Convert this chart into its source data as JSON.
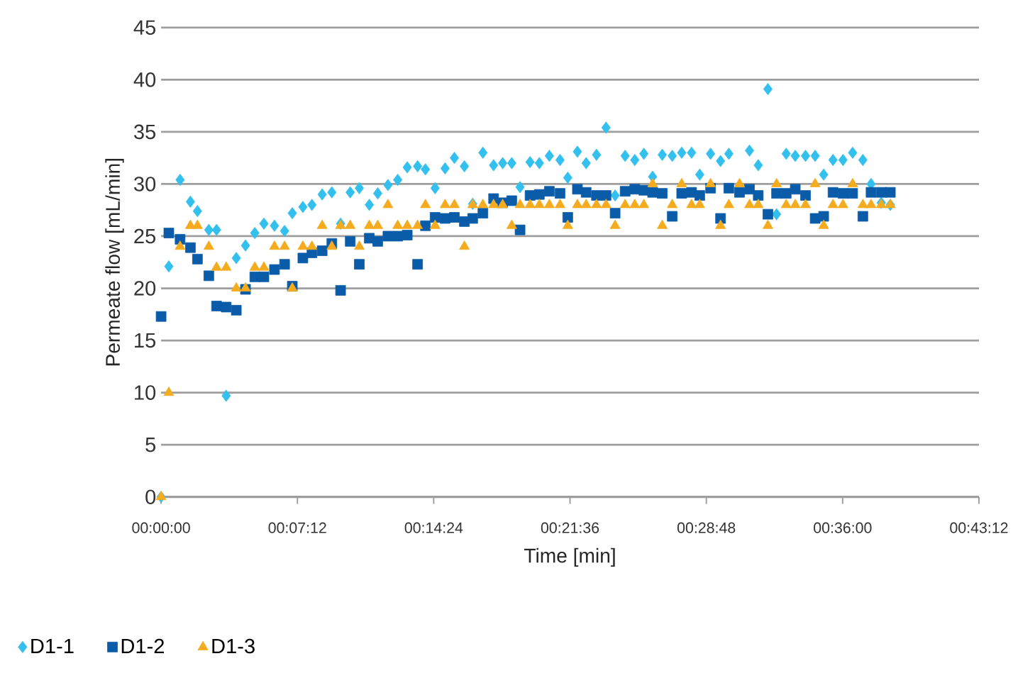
{
  "chart_data": {
    "type": "scatter",
    "xlabel": "Time [min]",
    "ylabel": "Permeate flow [mL/min]",
    "x": [
      0,
      0.0068,
      0.0167,
      0.0258,
      0.032,
      0.042,
      0.0488,
      0.0573,
      0.0662,
      0.0743,
      0.0825,
      0.0905,
      0.0998,
      0.1087,
      0.1155,
      0.1248,
      0.1328,
      0.1418,
      0.1503,
      0.158,
      0.1665,
      0.1745,
      0.1833,
      0.1907,
      0.1997,
      0.2083,
      0.2167,
      0.2258,
      0.2327,
      0.2412,
      0.25,
      0.2582,
      0.267,
      0.2743,
      0.2833,
      0.2927,
      0.3007,
      0.3087,
      0.316,
      0.3248,
      0.333,
      0.3418,
      0.3512,
      0.358,
      0.3665,
      0.3742,
      0.3833,
      0.3917,
      0.3997,
      0.4085,
      0.417,
      0.425,
      0.4327,
      0.4412,
      0.45,
      0.4583,
      0.467,
      0.4742,
      0.4837,
      0.4925,
      0.4998,
      0.5092,
      0.518,
      0.5257,
      0.5342,
      0.5418,
      0.5503,
      0.5583,
      0.5673,
      0.5758,
      0.5833,
      0.5915,
      0.6003,
      0.6088,
      0.6178,
      0.625,
      0.634,
      0.642
    ],
    "series": [
      {
        "name": "D1-1",
        "color": "#33c0ee",
        "marker": "diamond",
        "values": [
          0,
          22.1,
          30.4,
          28.3,
          27.4,
          25.6,
          25.6,
          9.7,
          22.9,
          24.1,
          25.3,
          26.2,
          26.0,
          25.5,
          27.2,
          27.8,
          28.0,
          29.0,
          29.2,
          26.2,
          29.2,
          29.6,
          28.0,
          29.1,
          29.9,
          30.4,
          31.6,
          31.7,
          31.4,
          29.6,
          31.5,
          32.5,
          31.7,
          28.1,
          33.0,
          31.8,
          32.0,
          32.0,
          29.7,
          32.1,
          32.0,
          32.7,
          32.3,
          30.6,
          33.1,
          32.0,
          32.8,
          35.4,
          28.9,
          32.7,
          32.3,
          32.9,
          30.7,
          32.8,
          32.7,
          33.0,
          33.0,
          30.9,
          32.9,
          32.2,
          32.9,
          null,
          33.2,
          31.8,
          39.1,
          27.1,
          32.9,
          32.7,
          32.7,
          32.7,
          30.9,
          32.3,
          32.3,
          33.0,
          32.3,
          30.0,
          28.2,
          28.0
        ]
      },
      {
        "name": "D1-2",
        "color": "#0b5ca8",
        "marker": "square",
        "values": [
          17.3,
          25.3,
          24.7,
          23.9,
          22.8,
          21.2,
          18.3,
          18.2,
          17.9,
          19.9,
          21.1,
          21.1,
          21.8,
          22.3,
          20.2,
          22.9,
          23.4,
          23.6,
          24.3,
          19.8,
          24.5,
          22.3,
          24.8,
          24.5,
          25.0,
          25.0,
          25.1,
          22.3,
          26.0,
          26.8,
          26.7,
          26.8,
          26.4,
          26.7,
          27.2,
          28.6,
          28.2,
          28.4,
          25.6,
          28.9,
          29.0,
          29.3,
          29.1,
          26.8,
          29.5,
          29.2,
          28.9,
          28.9,
          27.2,
          29.3,
          29.5,
          29.4,
          29.2,
          29.1,
          26.9,
          29.1,
          29.2,
          28.9,
          29.6,
          26.7,
          29.6,
          29.2,
          29.5,
          28.9,
          27.1,
          29.1,
          29.1,
          29.5,
          28.9,
          26.7,
          26.9,
          29.2,
          29.1,
          29.1,
          26.9,
          29.2,
          29.2,
          29.2
        ]
      },
      {
        "name": "D1-3",
        "color": "#f5ab1e",
        "marker": "triangle",
        "values": [
          0,
          10,
          24,
          26,
          26,
          24,
          22,
          22,
          20,
          20,
          22,
          22,
          24,
          24,
          20,
          24,
          24,
          26,
          24,
          26,
          26,
          24,
          26,
          26,
          28,
          26,
          26,
          26,
          28,
          26,
          28,
          28,
          24,
          28,
          28,
          28,
          28,
          26,
          28,
          28,
          28,
          28,
          28,
          26,
          28,
          28,
          28,
          28,
          26,
          28,
          28,
          28,
          30,
          26,
          28,
          30,
          28,
          28,
          30,
          26,
          28,
          30,
          28,
          28,
          26,
          30,
          28,
          28,
          28,
          30,
          26,
          28,
          28,
          30,
          28,
          28,
          28,
          28
        ]
      }
    ],
    "xlim": [
      0,
      0.72
    ],
    "xticks": [
      {
        "value": 0,
        "label": "00:00:00"
      },
      {
        "value": 0.12,
        "label": "00:07:12"
      },
      {
        "value": 0.24,
        "label": "00:14:24"
      },
      {
        "value": 0.36,
        "label": "00:21:36"
      },
      {
        "value": 0.48,
        "label": "00:28:48"
      },
      {
        "value": 0.6,
        "label": "00:36:00"
      },
      {
        "value": 0.72,
        "label": "00:43:12"
      }
    ],
    "ylim": [
      0,
      45
    ],
    "yticks": [
      0,
      5,
      10,
      15,
      20,
      25,
      30,
      35,
      40,
      45
    ],
    "grid": "y",
    "legend": "bottom left"
  }
}
